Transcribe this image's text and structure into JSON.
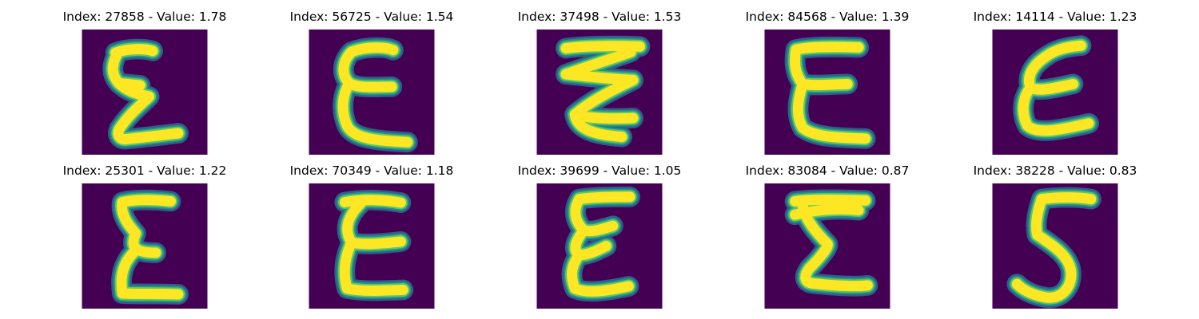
{
  "colors": {
    "background": "#440154",
    "low": "#30678d",
    "mid": "#21918c",
    "high": "#5ec962",
    "peak": "#fde725"
  },
  "panels": [
    {
      "title": "Index: 27858 - Value: 1.78"
    },
    {
      "title": "Index: 56725 - Value: 1.54"
    },
    {
      "title": "Index: 37498 - Value: 1.53"
    },
    {
      "title": "Index: 84568 - Value: 1.39"
    },
    {
      "title": "Index: 14114 - Value: 1.23"
    },
    {
      "title": "Index: 25301 - Value: 1.22"
    },
    {
      "title": "Index: 70349 - Value: 1.18"
    },
    {
      "title": "Index: 39699 - Value: 1.05"
    },
    {
      "title": "Index: 83084 - Value: 0.87"
    },
    {
      "title": "Index: 38228 - Value: 0.83"
    }
  ]
}
